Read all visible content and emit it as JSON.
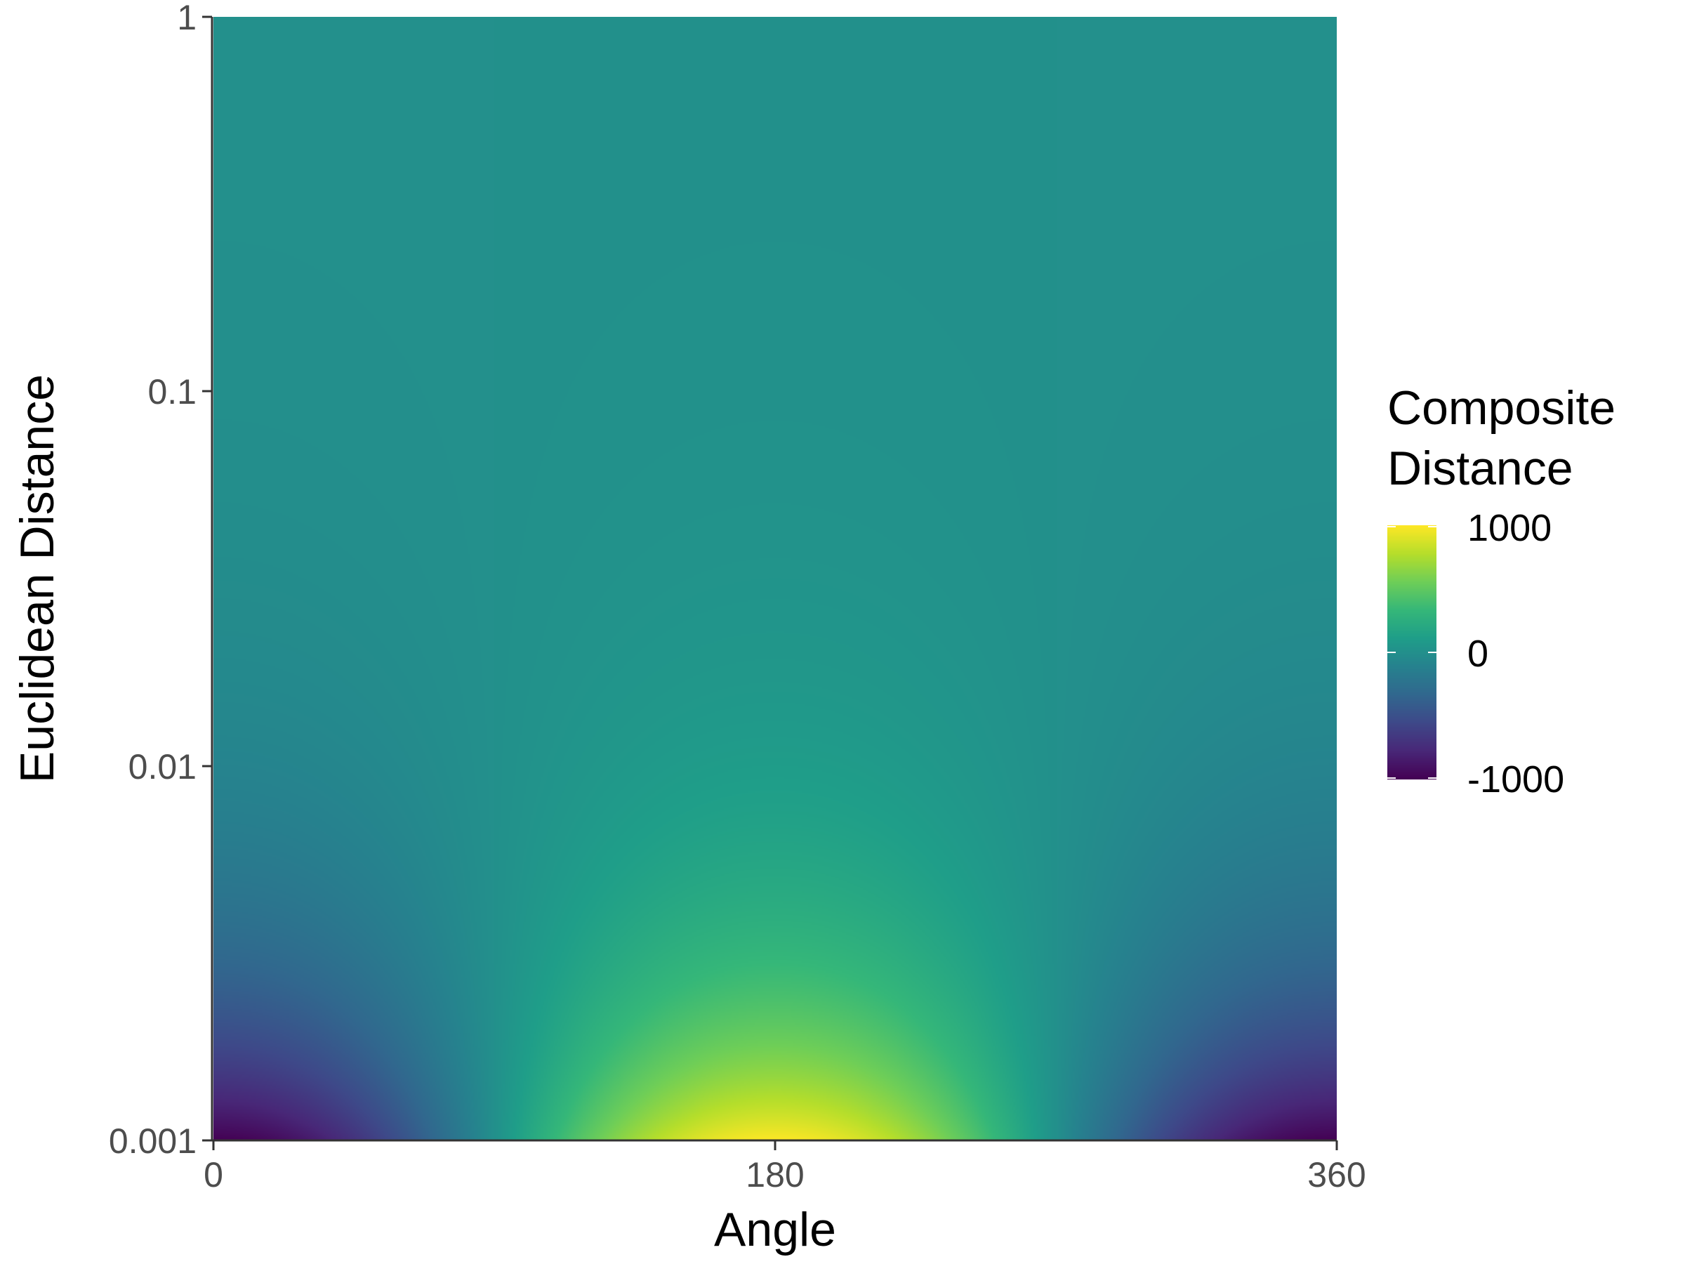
{
  "chart_data": {
    "type": "heatmap",
    "title": "",
    "xlabel": "Angle",
    "ylabel": "Euclidean Distance",
    "x_range": [
      0,
      360
    ],
    "x_ticks": [
      {
        "value": 0,
        "label": "0"
      },
      {
        "value": 180,
        "label": "180"
      },
      {
        "value": 360,
        "label": "360"
      }
    ],
    "y_scale": "log10",
    "y_range": [
      0.001,
      1
    ],
    "y_ticks": [
      {
        "value": 0.001,
        "label": "0.001"
      },
      {
        "value": 0.01,
        "label": "0.01"
      },
      {
        "value": 0.1,
        "label": "0.1"
      },
      {
        "value": 1,
        "label": "1"
      }
    ],
    "grid": false,
    "legend": {
      "title_lines": [
        "Composite",
        "Distance"
      ],
      "position": "right",
      "colormap": "viridis",
      "range": [
        -1000,
        1000
      ],
      "ticks": [
        {
          "value": 1000,
          "label": "1000"
        },
        {
          "value": 0,
          "label": "0"
        },
        {
          "value": -1000,
          "label": "-1000"
        }
      ]
    },
    "surface": "z = -cos(angle) / distance, clipped to [-1000, 1000]; -1000 at angle 0/360 and distance 0.001, +1000 at angle 180 and distance 0.001, approaching 0 as distance grows",
    "colors": {
      "viridis_stops": [
        "#440154",
        "#482878",
        "#3e4989",
        "#31688e",
        "#26828e",
        "#1f9e89",
        "#35b779",
        "#6ece58",
        "#b5de2b",
        "#fde725"
      ],
      "axis_line": "#333333",
      "tick_text": "#4d4d4d"
    }
  }
}
